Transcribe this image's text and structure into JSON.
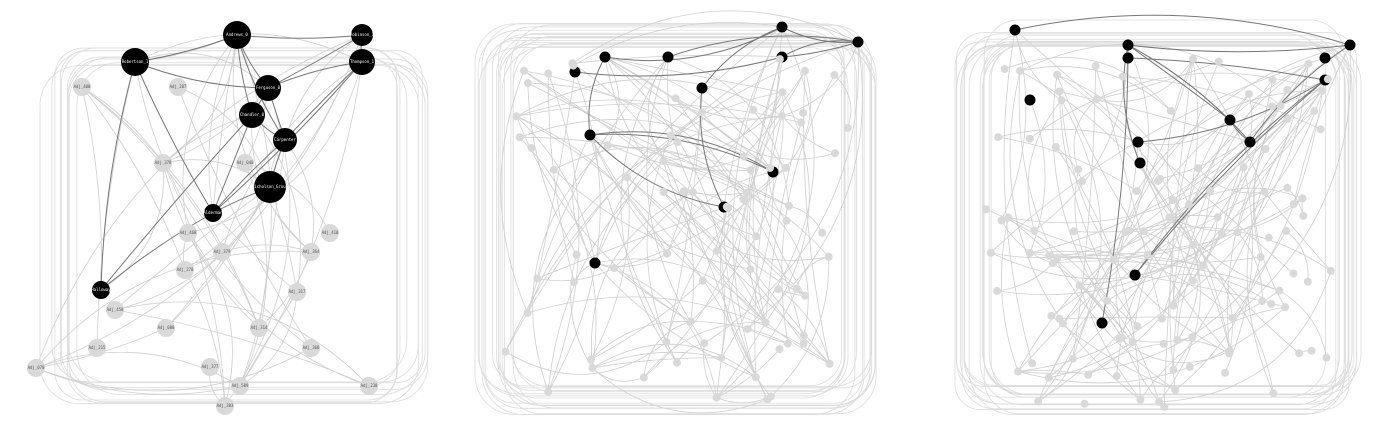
{
  "graphs": [
    {
      "nodes": [
        {
          "label": "Andrews_0"
        },
        {
          "label": "Robinson_1"
        },
        {
          "label": "Robertson_1"
        },
        {
          "label": "Thompson_1"
        },
        {
          "label": "Ferguson_0"
        },
        {
          "label": "Chandler_0"
        },
        {
          "label": "Carpenter"
        },
        {
          "label": "Nicholson_Group"
        },
        {
          "label": "Alderman"
        },
        {
          "label": "Halloway"
        },
        {
          "label": "Adj_400"
        },
        {
          "label": "Adj_207"
        },
        {
          "label": "Adj_378"
        },
        {
          "label": "Adj_040"
        },
        {
          "label": "Adj_468"
        },
        {
          "label": "Adj_379"
        },
        {
          "label": "Adj_270"
        },
        {
          "label": "Adj_410"
        },
        {
          "label": "Adj_364"
        },
        {
          "label": "Adj_317"
        },
        {
          "label": "Adj_450"
        },
        {
          "label": "Adj_088"
        },
        {
          "label": "Adj_314"
        },
        {
          "label": "Adj_368"
        },
        {
          "label": "Adj_215"
        },
        {
          "label": "Adj_377"
        },
        {
          "label": "Adj_070"
        },
        {
          "label": "Adj_509"
        },
        {
          "label": "Adj_238"
        },
        {
          "label": "Adj_303"
        }
      ]
    }
  ]
}
